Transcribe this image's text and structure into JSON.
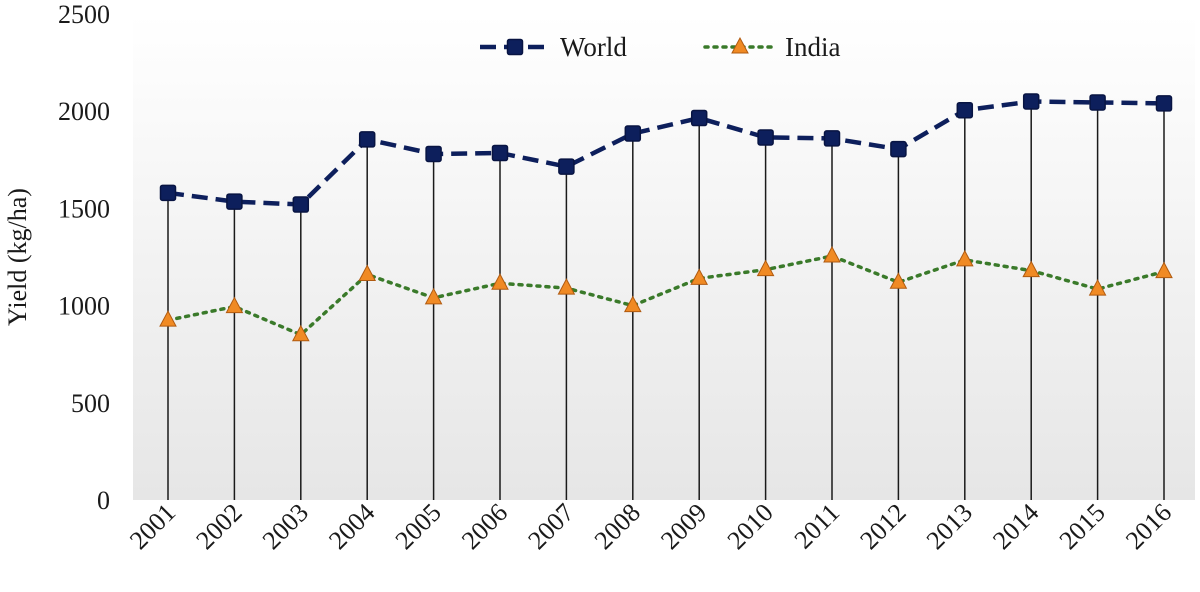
{
  "chart_data": {
    "type": "line",
    "categories": [
      "2001",
      "2002",
      "2003",
      "2004",
      "2005",
      "2006",
      "2007",
      "2008",
      "2009",
      "2010",
      "2011",
      "2012",
      "2013",
      "2014",
      "2015",
      "2016"
    ],
    "series": [
      {
        "name": "World",
        "color": "#0d1f5c",
        "line_style": "dashed",
        "marker": "square",
        "values": [
          1580,
          1535,
          1520,
          1855,
          1780,
          1785,
          1715,
          1885,
          1965,
          1865,
          1860,
          1805,
          2005,
          2050,
          2045,
          2040
        ]
      },
      {
        "name": "India",
        "color": "#3a7a2a",
        "marker_color": "#f08a24",
        "line_style": "dotted",
        "marker": "triangle",
        "values": [
          925,
          995,
          850,
          1160,
          1040,
          1115,
          1090,
          1000,
          1140,
          1185,
          1255,
          1120,
          1235,
          1180,
          1085,
          1175
        ]
      }
    ],
    "ylabel": "Yield (kg/ha)",
    "xlabel": "",
    "ylim": [
      0,
      2500
    ],
    "yticks": [
      0,
      500,
      1000,
      1500,
      2000,
      2500
    ],
    "drop_lines": true,
    "grid": false,
    "legend": "top-center",
    "background": "gradient-gray"
  }
}
